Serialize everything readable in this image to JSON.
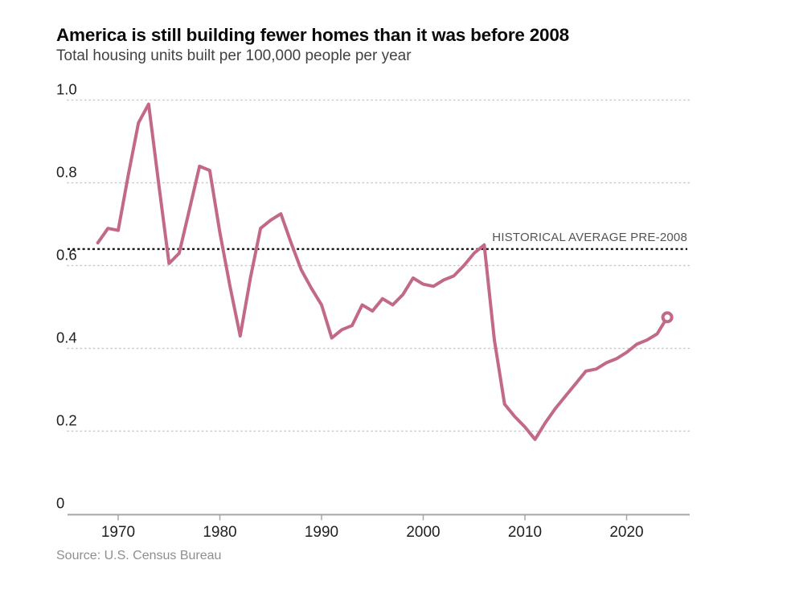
{
  "header": {
    "title": "America is still building fewer homes than it was before 2008",
    "subtitle": "Total housing units built per 100,000 people per year"
  },
  "footer": {
    "source": "Source: U.S. Census Bureau"
  },
  "colors": {
    "line": "#c2698a",
    "average_line": "#161616",
    "grid": "#c9c9c9",
    "axis": "#a6a6a6",
    "tick_text": "#1f1f1f",
    "annotation_text": "#545454",
    "source_text": "#8f8f8f",
    "background": "#ffffff"
  },
  "chart_data": {
    "type": "line",
    "title": "America is still building fewer homes than it was before 2008",
    "subtitle": "Total housing units built per 100,000 people per year",
    "xlabel": "",
    "ylabel": "",
    "grid": "horizontal-dotted",
    "legend": "none",
    "ylim": [
      0,
      1.0
    ],
    "xlim": [
      1968,
      2024
    ],
    "x": [
      1968,
      1969,
      1970,
      1971,
      1972,
      1973,
      1974,
      1975,
      1976,
      1977,
      1978,
      1979,
      1980,
      1981,
      1982,
      1983,
      1984,
      1985,
      1986,
      1987,
      1988,
      1989,
      1990,
      1991,
      1992,
      1993,
      1994,
      1995,
      1996,
      1997,
      1998,
      1999,
      2000,
      2001,
      2002,
      2003,
      2004,
      2005,
      2006,
      2007,
      2008,
      2009,
      2010,
      2011,
      2012,
      2013,
      2014,
      2015,
      2016,
      2017,
      2018,
      2019,
      2020,
      2021,
      2022,
      2023,
      2024
    ],
    "series": [
      {
        "name": "Total housing units built per 100,000 people per year",
        "values": [
          0.655,
          0.69,
          0.685,
          0.82,
          0.945,
          0.99,
          0.795,
          0.605,
          0.63,
          0.735,
          0.84,
          0.83,
          0.68,
          0.55,
          0.43,
          0.57,
          0.69,
          0.71,
          0.725,
          0.655,
          0.59,
          0.545,
          0.505,
          0.425,
          0.445,
          0.455,
          0.505,
          0.49,
          0.52,
          0.505,
          0.53,
          0.57,
          0.555,
          0.55,
          0.565,
          0.575,
          0.6,
          0.63,
          0.65,
          0.42,
          0.265,
          0.235,
          0.21,
          0.18,
          0.22,
          0.255,
          0.285,
          0.315,
          0.345,
          0.35,
          0.365,
          0.375,
          0.39,
          0.41,
          0.42,
          0.435,
          0.475
        ]
      }
    ],
    "yticks": [
      {
        "label": "1.0",
        "value": 1.0
      },
      {
        "label": "0.8",
        "value": 0.8
      },
      {
        "label": "0.6",
        "value": 0.6
      },
      {
        "label": "0.4",
        "value": 0.4
      },
      {
        "label": "0.2",
        "value": 0.2
      },
      {
        "label": "0",
        "value": 0
      }
    ],
    "xticks": [
      1970,
      1980,
      1990,
      2000,
      2010,
      2020
    ],
    "annotation": {
      "label": "HISTORICAL AVERAGE PRE-2008",
      "value": 0.64,
      "line_style": "dotted-black"
    },
    "end_marker": {
      "year": 2024,
      "value": 0.475,
      "style": "open-circle"
    }
  }
}
